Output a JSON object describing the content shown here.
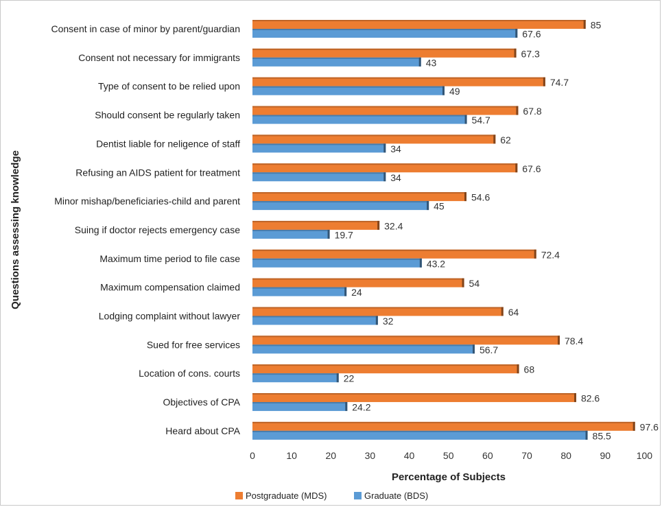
{
  "chart_data": {
    "type": "bar",
    "orientation": "horizontal",
    "categories": [
      "Consent in case of minor by parent/guardian",
      "Consent not necessary for immigrants",
      "Type of consent to be relied upon",
      "Should consent be regularly taken",
      "Dentist liable for neligence of staff",
      "Refusing an AIDS patient for treatment",
      "Minor mishap/beneficiaries-child and parent",
      "Suing if doctor rejects emergency case",
      "Maximum time period to file case",
      "Maximum compensation claimed",
      "Lodging complaint without lawyer",
      "Sued for free services",
      "Location of cons. courts",
      "Objectives of CPA",
      "Heard about CPA"
    ],
    "series": [
      {
        "name": "Postgraduate (MDS)",
        "color": "#ED7D31",
        "values": [
          85,
          67.3,
          74.7,
          67.8,
          62,
          67.6,
          54.6,
          32.4,
          72.4,
          54,
          64,
          78.4,
          68,
          82.6,
          97.6
        ],
        "labels": [
          "85",
          "67.3",
          "74.7",
          "67.8",
          "62",
          "67.6",
          "54.6",
          "32.4",
          "72.4",
          "54",
          "64",
          "78.4",
          "68",
          "82.6",
          "97.6"
        ]
      },
      {
        "name": "Graduate (BDS)",
        "color": "#5B9BD5",
        "values": [
          67.6,
          43,
          49,
          54.7,
          34,
          34,
          45,
          19.7,
          43.2,
          24,
          32,
          56.7,
          22,
          24.2,
          85.5
        ],
        "labels": [
          "67.6",
          "43",
          "49",
          "54.7",
          "34",
          "34",
          "45",
          "19.7",
          "43.2",
          "24",
          "32",
          "56.7",
          "22",
          "24.2",
          "85.5"
        ]
      }
    ],
    "xlabel": "Percentage of Subjects",
    "ylabel": "Questions assessing knowledge",
    "xlim": [
      0,
      100
    ],
    "xticks": [
      "0",
      "10",
      "20",
      "30",
      "40",
      "50",
      "60",
      "70",
      "80",
      "90",
      "100"
    ],
    "grid": false,
    "legend": "bottom"
  }
}
